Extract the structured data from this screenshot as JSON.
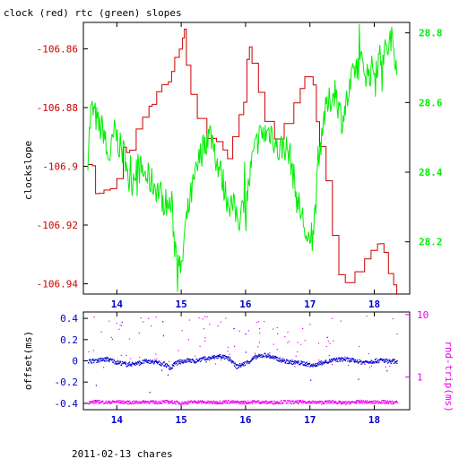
{
  "footer": "2011-02-13 chares",
  "colors": {
    "clock": "#cc0000",
    "rtc": "#00ee00",
    "offset": "#0000cc",
    "rndtrip": "#ee00ee",
    "axis": "#000000"
  },
  "chart_data": [
    {
      "type": "line",
      "title": "clock (red) rtc (green) slopes",
      "ylabel": "clockslope",
      "xlim": [
        13.48,
        18.55
      ],
      "xticks": [
        "14",
        "15",
        "16",
        "17",
        "18"
      ],
      "xtick_values": [
        14,
        15,
        16,
        17,
        18
      ],
      "ylim": [
        -106.9435,
        -106.851
      ],
      "yticks": [
        "-106.86",
        "-106.88",
        "-106.9",
        "-106.92",
        "-106.94"
      ],
      "ytick_values": [
        -106.86,
        -106.88,
        -106.9,
        -106.92,
        -106.94
      ],
      "y2lim": [
        28.05,
        28.83
      ],
      "y2ticks": [
        "28.8",
        "28.6",
        "28.4",
        "28.2"
      ],
      "y2tick_values": [
        28.8,
        28.6,
        28.4,
        28.2
      ],
      "grid": false,
      "series": [
        {
          "axis": "left",
          "x": [
            13.55,
            13.62,
            13.67,
            13.72,
            13.8,
            13.9,
            14.0,
            14.1,
            14.15,
            14.2,
            14.3,
            14.4,
            14.5,
            14.55,
            14.62,
            14.7,
            14.8,
            14.85,
            14.9,
            14.97,
            15.02,
            15.05,
            15.08,
            15.15,
            15.25,
            15.4,
            15.55,
            15.65,
            15.72,
            15.8,
            15.9,
            15.97,
            16.02,
            16.06,
            16.1,
            16.2,
            16.3,
            16.45,
            16.6,
            16.75,
            16.85,
            16.92,
            16.97,
            17.05,
            17.1,
            17.15,
            17.25,
            17.35,
            17.45,
            17.55,
            17.7,
            17.85,
            17.95,
            18.05,
            18.1,
            18.15,
            18.22,
            18.3,
            18.35
          ],
          "values": [
            -106.8994,
            -106.8998,
            -106.9093,
            -106.9092,
            -106.9081,
            -106.9076,
            -106.9042,
            -106.8935,
            -106.8953,
            -106.8945,
            -106.8873,
            -106.8833,
            -106.8795,
            -106.8789,
            -106.8746,
            -106.8722,
            -106.8712,
            -106.8677,
            -106.8629,
            -106.8601,
            -106.8563,
            -106.8533,
            -106.8656,
            -106.8755,
            -106.8837,
            -106.8905,
            -106.8916,
            -106.8944,
            -106.8974,
            -106.8899,
            -106.8824,
            -106.8782,
            -106.8636,
            -106.8593,
            -106.8649,
            -106.8748,
            -106.8847,
            -106.8907,
            -106.8854,
            -106.8784,
            -106.8735,
            -106.8695,
            -106.8695,
            -106.8723,
            -106.8848,
            -106.8933,
            -106.9049,
            -106.9235,
            -106.9369,
            -106.9396,
            -106.9359,
            -106.9315,
            -106.9286,
            -106.9264,
            -106.9263,
            -106.9293,
            -106.9365,
            -106.9404,
            -106.9437
          ]
        },
        {
          "axis": "right",
          "x": [
            13.55,
            13.6,
            13.65,
            13.72,
            13.8,
            13.85,
            13.9,
            13.97,
            14.05,
            14.15,
            14.2,
            14.3,
            14.4,
            14.5,
            14.6,
            14.7,
            14.8,
            14.85,
            14.9,
            14.95,
            15.0,
            15.05,
            15.1,
            15.15,
            15.2,
            15.3,
            15.4,
            15.45,
            15.5,
            15.55,
            15.6,
            15.7,
            15.8,
            15.9,
            16.0,
            16.1,
            16.2,
            16.3,
            16.4,
            16.5,
            16.55,
            16.6,
            16.7,
            16.8,
            16.9,
            16.95,
            17.0,
            17.05,
            17.1,
            17.2,
            17.3,
            17.4,
            17.45,
            17.5,
            17.6,
            17.7,
            17.8,
            17.9,
            18.0,
            18.1,
            18.2,
            18.25,
            18.3,
            18.35
          ],
          "values": [
            28.45,
            28.58,
            28.57,
            28.53,
            28.52,
            28.44,
            28.45,
            28.52,
            28.47,
            28.44,
            28.35,
            28.42,
            28.4,
            28.38,
            28.36,
            28.33,
            28.3,
            28.31,
            28.19,
            28.18,
            28.1,
            28.22,
            28.28,
            28.33,
            28.37,
            28.45,
            28.5,
            28.51,
            28.49,
            28.43,
            28.41,
            28.33,
            28.3,
            28.27,
            28.3,
            28.43,
            28.5,
            28.51,
            28.52,
            28.46,
            28.47,
            28.48,
            28.44,
            28.32,
            28.26,
            28.2,
            28.18,
            28.22,
            28.34,
            28.55,
            28.6,
            28.64,
            28.58,
            28.55,
            28.62,
            28.7,
            28.71,
            28.68,
            28.7,
            28.73,
            28.75,
            28.78,
            28.77,
            28.71
          ]
        }
      ]
    },
    {
      "type": "scatter",
      "ylabel": "offset(ms)",
      "y2label": "rnd-trip(ms)",
      "xlim": [
        13.48,
        18.55
      ],
      "xticks": [
        "14",
        "15",
        "16",
        "17",
        "18"
      ],
      "xtick_values": [
        14,
        15,
        16,
        17,
        18
      ],
      "ylim": [
        -0.46,
        0.46
      ],
      "yticks": [
        "0.4",
        "0.2",
        "0",
        "-0.2",
        "-0.4"
      ],
      "ytick_values": [
        0.4,
        0.2,
        0,
        -0.2,
        -0.4
      ],
      "y2_scale": "log",
      "y2lim": [
        0.3,
        11
      ],
      "y2ticks": [
        "10",
        "1"
      ],
      "y2tick_values": [
        10,
        1
      ],
      "grid": false,
      "series": [
        {
          "axis": "left",
          "x": [
            13.55,
            13.7,
            13.85,
            14.0,
            14.15,
            14.3,
            14.45,
            14.6,
            14.75,
            14.82,
            14.9,
            15.0,
            15.1,
            15.2,
            15.3,
            15.45,
            15.6,
            15.75,
            15.85,
            15.95,
            16.05,
            16.15,
            16.3,
            16.45,
            16.6,
            16.75,
            16.9,
            17.05,
            17.2,
            17.35,
            17.5,
            17.65,
            17.8,
            17.95,
            18.1,
            18.25,
            18.35
          ],
          "values": [
            0.0,
            0.01,
            0.02,
            -0.01,
            -0.03,
            -0.02,
            0.0,
            -0.01,
            -0.03,
            -0.07,
            -0.02,
            0.0,
            0.01,
            0.0,
            0.02,
            0.03,
            0.05,
            0.02,
            -0.05,
            -0.03,
            0.0,
            0.04,
            0.06,
            0.03,
            0.0,
            -0.01,
            -0.02,
            -0.04,
            -0.01,
            0.01,
            0.02,
            0.01,
            -0.01,
            0.0,
            0.01,
            0.0,
            0.0
          ]
        },
        {
          "axis": "right",
          "x": [
            13.55,
            13.7,
            13.85,
            14.0,
            14.15,
            14.3,
            14.45,
            14.6,
            14.75,
            14.9,
            15.0,
            15.1,
            15.25,
            15.4,
            15.55,
            15.7,
            15.85,
            16.0,
            16.15,
            16.3,
            16.45,
            16.6,
            16.75,
            16.9,
            17.05,
            17.2,
            17.35,
            17.5,
            17.65,
            17.8,
            17.95,
            18.1,
            18.25,
            18.35
          ],
          "values": [
            0.4,
            0.41,
            0.4,
            0.41,
            0.4,
            0.4,
            0.41,
            0.4,
            0.41,
            0.4,
            0.39,
            0.4,
            0.41,
            0.4,
            0.4,
            0.41,
            0.4,
            0.4,
            0.41,
            0.4,
            0.4,
            0.41,
            0.4,
            0.41,
            0.4,
            0.4,
            0.41,
            0.39,
            0.4,
            0.41,
            0.4,
            0.41,
            0.4,
            0.4
          ]
        }
      ]
    }
  ]
}
